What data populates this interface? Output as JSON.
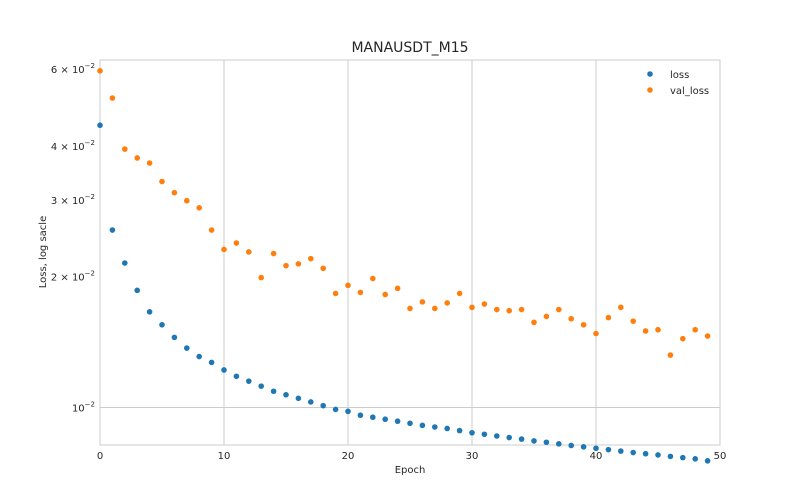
{
  "chart_data": {
    "type": "scatter",
    "title": "MANAUSDT_M15",
    "xlabel": "Epoch",
    "ylabel": "Loss, log sacle",
    "yscale": "log",
    "xlim": [
      0,
      50
    ],
    "ylim": [
      0.0082,
      0.063
    ],
    "x_ticks": [
      0,
      10,
      20,
      30,
      40,
      50
    ],
    "y_ticks": [
      {
        "value": 0.01,
        "mantissa": "",
        "exponent": "−2"
      },
      {
        "value": 0.02,
        "mantissa": "2",
        "exponent": "−2"
      },
      {
        "value": 0.03,
        "mantissa": "3",
        "exponent": "−2"
      },
      {
        "value": 0.04,
        "mantissa": "4",
        "exponent": "−2"
      },
      {
        "value": 0.06,
        "mantissa": "6",
        "exponent": "−2"
      }
    ],
    "grid": true,
    "legend": {
      "position": "top-right"
    },
    "series": [
      {
        "name": "loss",
        "color": "#1f77b4",
        "x": [
          0,
          1,
          2,
          3,
          4,
          5,
          6,
          7,
          8,
          9,
          10,
          11,
          12,
          13,
          14,
          15,
          16,
          17,
          18,
          19,
          20,
          21,
          22,
          23,
          24,
          25,
          26,
          27,
          28,
          29,
          30,
          31,
          32,
          33,
          34,
          35,
          36,
          37,
          38,
          39,
          40,
          41,
          42,
          43,
          44,
          45,
          46,
          47,
          48,
          49
        ],
        "y": [
          0.0446,
          0.0256,
          0.0215,
          0.0186,
          0.0166,
          0.0155,
          0.0145,
          0.0137,
          0.0131,
          0.0127,
          0.0122,
          0.0118,
          0.0115,
          0.0112,
          0.0109,
          0.0107,
          0.0105,
          0.0103,
          0.0101,
          0.0099,
          0.0098,
          0.0096,
          0.0095,
          0.0094,
          0.0093,
          0.0092,
          0.0091,
          0.00902,
          0.00895,
          0.00885,
          0.00875,
          0.00868,
          0.0086,
          0.00853,
          0.00846,
          0.00838,
          0.00832,
          0.00825,
          0.00818,
          0.00812,
          0.00806,
          0.008,
          0.00794,
          0.00788,
          0.00783,
          0.00778,
          0.00772,
          0.00767,
          0.00762,
          0.00754
        ]
      },
      {
        "name": "val_loss",
        "color": "#ff7f0e",
        "x": [
          0,
          1,
          2,
          3,
          4,
          5,
          6,
          7,
          8,
          9,
          10,
          11,
          12,
          13,
          14,
          15,
          16,
          17,
          18,
          19,
          20,
          21,
          22,
          23,
          24,
          25,
          26,
          27,
          28,
          29,
          30,
          31,
          32,
          33,
          34,
          35,
          36,
          37,
          38,
          39,
          40,
          41,
          42,
          43,
          44,
          45,
          46,
          47,
          48,
          49
        ],
        "y": [
          0.0595,
          0.0515,
          0.0393,
          0.0375,
          0.0365,
          0.0331,
          0.0312,
          0.0299,
          0.0288,
          0.0256,
          0.0231,
          0.0239,
          0.0228,
          0.0199,
          0.0226,
          0.0212,
          0.0214,
          0.022,
          0.0209,
          0.0183,
          0.0191,
          0.0184,
          0.0198,
          0.0182,
          0.0188,
          0.0169,
          0.0175,
          0.0169,
          0.0174,
          0.0183,
          0.017,
          0.0173,
          0.0168,
          0.0167,
          0.0168,
          0.0157,
          0.0162,
          0.0168,
          0.016,
          0.0155,
          0.0148,
          0.0161,
          0.017,
          0.0158,
          0.015,
          0.0151,
          0.0132,
          0.0144,
          0.0151,
          0.0146
        ]
      }
    ]
  }
}
